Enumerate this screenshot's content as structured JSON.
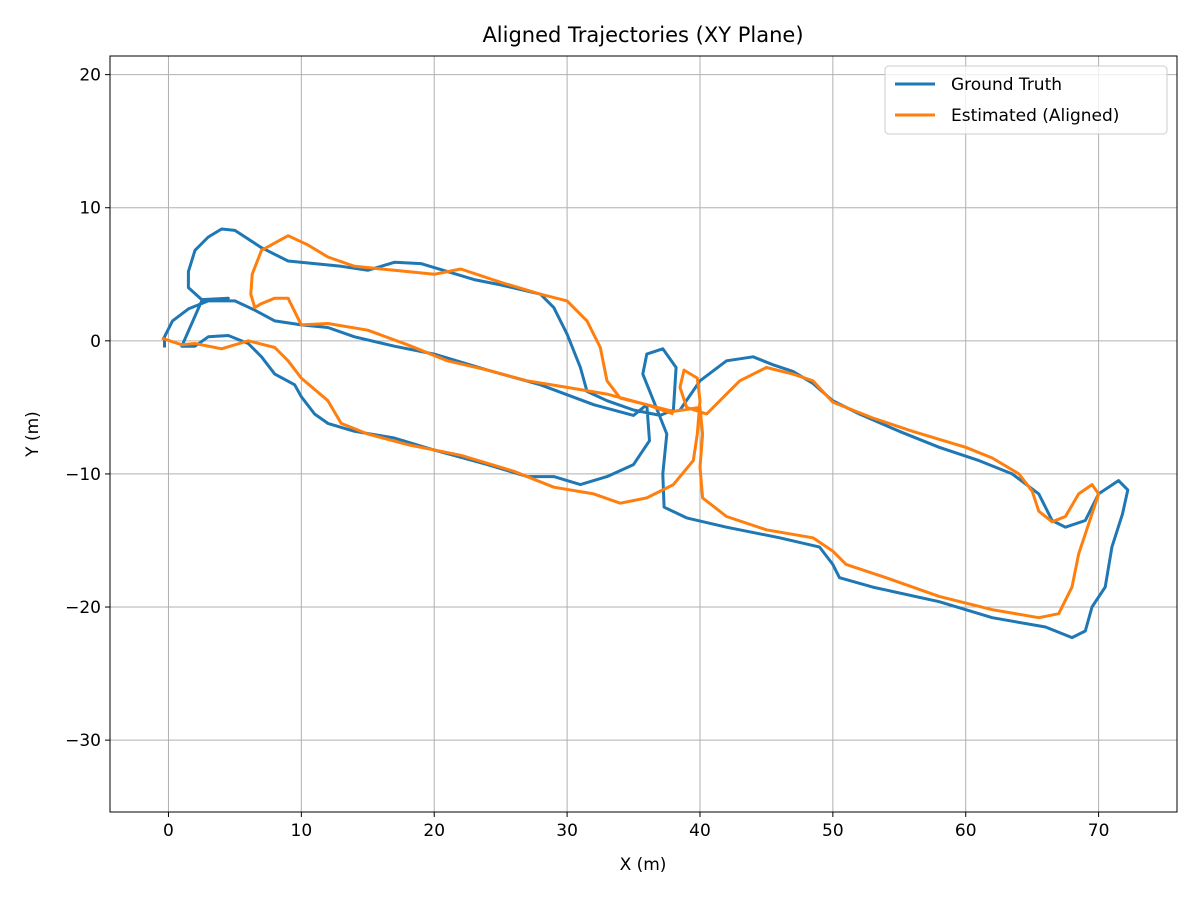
{
  "chart_data": {
    "type": "line",
    "title": "Aligned Trajectories (XY Plane)",
    "x_label": "X (m)",
    "y_label": "Y (m)",
    "xlim": [
      -4.4,
      75.9
    ],
    "ylim": [
      -35.4,
      21.4
    ],
    "xticks": [
      0,
      10,
      20,
      30,
      40,
      50,
      60,
      70
    ],
    "yticks": [
      {
        "value": -30,
        "label": "−30"
      },
      {
        "value": -20,
        "label": "−20"
      },
      {
        "value": -10,
        "label": "−10"
      },
      0,
      10,
      20
    ],
    "grid": true,
    "legend": "upper right",
    "series": [
      {
        "name": "Ground Truth",
        "color": "#1f77b4",
        "x": [
          -0.3,
          -0.3,
          0.3,
          1.5,
          3,
          5,
          6.5,
          8,
          10,
          12,
          14,
          17,
          20,
          24,
          28,
          32,
          35,
          36,
          36.2,
          35,
          33,
          31,
          29,
          27,
          24,
          20,
          17,
          14,
          12,
          11,
          10,
          9.5,
          8,
          7,
          6,
          4.5,
          3,
          2,
          1,
          2.5,
          4.5,
          2.5,
          1.5,
          1.5,
          2,
          3,
          4,
          5,
          7,
          9,
          11,
          13,
          15,
          17,
          19,
          21,
          23,
          25,
          28,
          29,
          30,
          31,
          31.5,
          33,
          35,
          37,
          38,
          38.2,
          37.2,
          36,
          35.7,
          36.5,
          37.5,
          37.2,
          37.3,
          39,
          42,
          46,
          49,
          50,
          50.5,
          53,
          58,
          62,
          66,
          68,
          69,
          69.5,
          70.5,
          71,
          71.8,
          72.2,
          71.5,
          70,
          69,
          67.5,
          66.5,
          65.5,
          63.5,
          61,
          58,
          55,
          52,
          50,
          48.5,
          47,
          45.5,
          44,
          42,
          40,
          38.5
        ],
        "values": [
          -0.5,
          0.3,
          1.5,
          2.4,
          3,
          3,
          2.3,
          1.5,
          1.2,
          1,
          0.3,
          -0.4,
          -1,
          -2.2,
          -3.3,
          -4.8,
          -5.6,
          -4.8,
          -7.5,
          -9.3,
          -10.2,
          -10.8,
          -10.2,
          -10.2,
          -9.3,
          -8.2,
          -7.3,
          -6.8,
          -6.2,
          -5.5,
          -4.2,
          -3.3,
          -2.5,
          -1.2,
          -0.2,
          0.4,
          0.3,
          -0.4,
          -0.4,
          3,
          3.2,
          3.1,
          4,
          5.2,
          6.8,
          7.8,
          8.4,
          8.3,
          7,
          6,
          5.8,
          5.6,
          5.3,
          5.9,
          5.8,
          5.2,
          4.6,
          4.2,
          3.5,
          2.5,
          0.5,
          -2,
          -3.8,
          -4.5,
          -5.2,
          -5.6,
          -5.2,
          -2,
          -0.6,
          -1,
          -2.5,
          -4.5,
          -7,
          -10,
          -12.5,
          -13.3,
          -14,
          -14.8,
          -15.5,
          -16.8,
          -17.8,
          -18.5,
          -19.6,
          -20.8,
          -21.5,
          -22.3,
          -21.8,
          -20,
          -18.5,
          -15.5,
          -13,
          -11.2,
          -10.5,
          -11.5,
          -13.5,
          -14,
          -13.5,
          -11.5,
          -10,
          -9,
          -8,
          -6.8,
          -5.5,
          -4.5,
          -3.2,
          -2.3,
          -1.8,
          -1.2,
          -1.5,
          -3,
          -5.2
        ]
      },
      {
        "name": "Estimated (Aligned)",
        "color": "#ff7f0e",
        "x": [
          -0.5,
          1,
          2,
          4,
          6,
          8,
          9,
          10,
          12,
          13,
          15,
          18,
          22,
          26,
          29,
          32,
          34,
          36,
          38,
          39.5,
          39.8,
          40,
          39.8,
          38.8,
          38.5,
          39,
          40.5,
          42,
          43,
          45,
          47,
          48.5,
          50,
          53,
          56,
          60,
          62,
          64,
          65,
          65.5,
          66.5,
          67.5,
          68.5,
          69.5,
          70,
          69.5,
          68.5,
          68,
          67,
          65.5,
          62,
          58,
          54,
          51,
          50,
          48.5,
          45,
          42,
          40.2,
          40,
          40.2,
          40,
          38,
          36,
          33,
          30,
          27,
          24,
          21,
          18,
          15,
          12,
          10,
          9,
          8,
          7,
          6.5,
          6.2,
          6.3,
          7,
          9,
          10.5,
          12,
          14,
          17,
          20,
          22,
          25,
          28,
          30,
          31.5,
          32.5,
          33,
          34,
          36,
          38
        ],
        "values": [
          0.2,
          -0.3,
          -0.2,
          -0.6,
          0,
          -0.5,
          -1.5,
          -2.8,
          -4.5,
          -6.2,
          -7,
          -7.8,
          -8.6,
          -9.8,
          -11,
          -11.5,
          -12.2,
          -11.8,
          -10.8,
          -9,
          -7,
          -4.5,
          -2.8,
          -2.2,
          -3.5,
          -5,
          -5.5,
          -4,
          -3,
          -2,
          -2.5,
          -3,
          -4.6,
          -5.8,
          -6.8,
          -8,
          -8.8,
          -10,
          -11.3,
          -12.8,
          -13.6,
          -13.2,
          -11.5,
          -10.8,
          -11.5,
          -13,
          -16,
          -18.5,
          -20.5,
          -20.8,
          -20.2,
          -19.2,
          -17.8,
          -16.8,
          -15.8,
          -14.8,
          -14.2,
          -13.2,
          -11.8,
          -9.5,
          -7,
          -5,
          -5.3,
          -4.8,
          -4,
          -3.5,
          -3,
          -2.2,
          -1.5,
          -0.3,
          0.8,
          1.3,
          1.2,
          3.2,
          3.2,
          2.8,
          2.5,
          3.5,
          5,
          6.8,
          7.9,
          7.2,
          6.3,
          5.6,
          5.3,
          5,
          5.4,
          4.4,
          3.5,
          3,
          1.5,
          -0.5,
          -3,
          -4.3,
          -4.8,
          -5.5
        ]
      }
    ]
  }
}
